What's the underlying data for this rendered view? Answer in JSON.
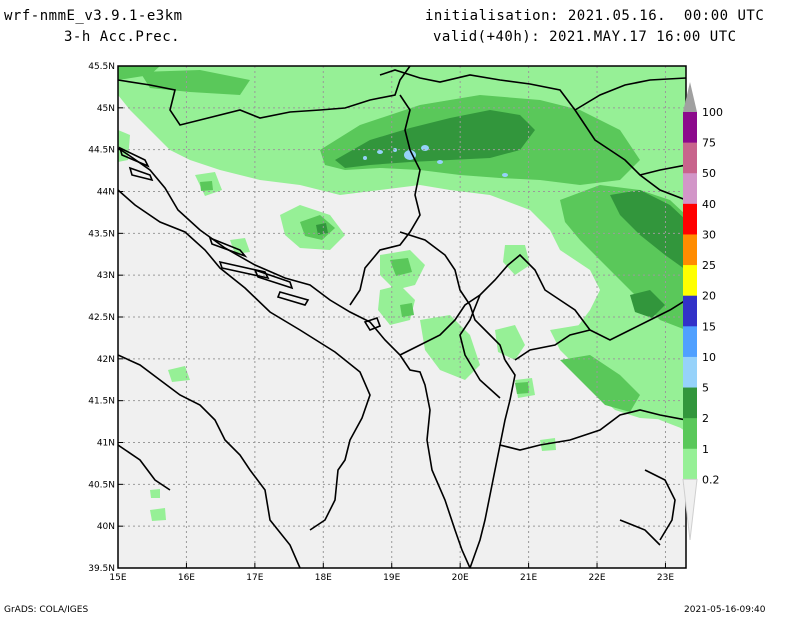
{
  "header": {
    "model": "wrf-nmmE_v3.9.1-e3km",
    "field": "3-h Acc.Prec.",
    "init": "initialisation: 2021.05.16.  00:00 UTC",
    "valid": "valid(+40h): 2021.MAY.17 16:00 UTC"
  },
  "footer": {
    "credit": "GrADS: COLA/IGES",
    "timestamp": "2021-05-16-09:40"
  },
  "map": {
    "lat_ticks": [
      "45.5N",
      "45N",
      "44.5N",
      "44N",
      "43.5N",
      "43N",
      "42.5N",
      "42N",
      "41.5N",
      "41N",
      "40.5N",
      "40N",
      "39.5N"
    ],
    "lon_ticks": [
      "15E",
      "16E",
      "17E",
      "18E",
      "19E",
      "20E",
      "21E",
      "22E",
      "23E"
    ],
    "lat_range": [
      39.5,
      45.5
    ],
    "lon_range": [
      15,
      23.3
    ],
    "grid": true,
    "background_color": "#f0f0f0"
  },
  "legend": {
    "levels": [
      {
        "label": "",
        "color": "#a0a0a0"
      },
      {
        "label": "100",
        "color": "#8c0a8c"
      },
      {
        "label": "75",
        "color": "#c8648c"
      },
      {
        "label": "50",
        "color": "#d296c8"
      },
      {
        "label": "40",
        "color": "#ff0000"
      },
      {
        "label": "30",
        "color": "#ff8c00"
      },
      {
        "label": "25",
        "color": "#ffff00"
      },
      {
        "label": "20",
        "color": "#3232c8"
      },
      {
        "label": "15",
        "color": "#50a0ff"
      },
      {
        "label": "10",
        "color": "#96d2fa"
      },
      {
        "label": "5",
        "color": "#32963c"
      },
      {
        "label": "2",
        "color": "#5ac85a"
      },
      {
        "label": "1",
        "color": "#96f096"
      },
      {
        "label": "0.2",
        "color": "#f0f0f0"
      }
    ]
  }
}
